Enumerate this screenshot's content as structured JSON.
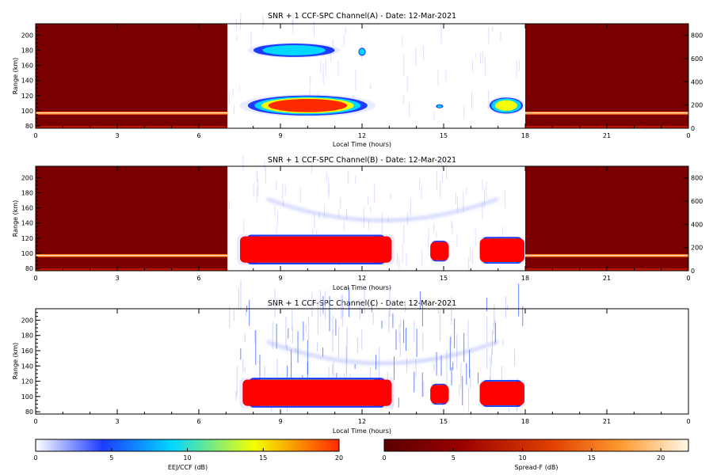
{
  "colors": {
    "eej_scale": [
      "#ffffff",
      "#1e3cff",
      "#00d7ff",
      "#f5ff00",
      "#ff2a00"
    ],
    "sf_scale": [
      "#5a0000",
      "#9a0000",
      "#e04000",
      "#ff9a30",
      "#fff8e8"
    ],
    "dark_bg": "#7a0000",
    "saturated": "#ff0000"
  },
  "chart_data": [
    {
      "type": "heatmap",
      "title": "SNR + 1 CCF-SPC Channel(A) - Date: 12-Mar-2021",
      "xlabel": "Local Time (hours)",
      "ylabel": "Range (km)",
      "xlim": [
        0,
        24
      ],
      "ylim": [
        77,
        215
      ],
      "y2lim": [
        0,
        900
      ],
      "x_ticks": [
        "0",
        "3",
        "6",
        "9",
        "12",
        "15",
        "18",
        "21",
        "0"
      ],
      "y_ticks": [
        "80",
        "100",
        "120",
        "140",
        "160",
        "180",
        "200"
      ],
      "y2_ticks": [
        "0",
        "200",
        "400",
        "600",
        "800"
      ],
      "spread_f_blocks": [
        [
          0,
          7.05
        ],
        [
          18,
          24
        ]
      ],
      "eej_blobs": [
        {
          "t": [
            7.5,
            12.5
          ],
          "r_center": 107,
          "r_halfwidth": 15,
          "peak_db": 20
        },
        {
          "t": [
            7.8,
            11.2
          ],
          "r_center": 180,
          "r_halfwidth": 10,
          "peak_db": 9
        },
        {
          "t": [
            11.85,
            12.15
          ],
          "r_center": 178,
          "r_halfwidth": 6,
          "peak_db": 8
        },
        {
          "t": [
            16.6,
            18
          ],
          "r_center": 107,
          "r_halfwidth": 12,
          "peak_db": 14
        },
        {
          "t": [
            14.7,
            15.0
          ],
          "r_center": 106,
          "r_halfwidth": 3,
          "peak_db": 6
        }
      ]
    },
    {
      "type": "heatmap",
      "title": "SNR + 1 CCF-SPC Channel(B) - Date: 12-Mar-2021",
      "xlabel": "Local Time (hours)",
      "ylabel": "Range (km)",
      "xlim": [
        0,
        24
      ],
      "ylim": [
        77,
        215
      ],
      "y2lim": [
        0,
        900
      ],
      "x_ticks": [
        "0",
        "3",
        "6",
        "9",
        "12",
        "15",
        "18",
        "21",
        "0"
      ],
      "y_ticks": [
        "80",
        "100",
        "120",
        "140",
        "160",
        "180",
        "200"
      ],
      "y2_ticks": [
        "0",
        "200",
        "400",
        "600",
        "800"
      ],
      "spread_f_blocks": [
        [
          0,
          7.05
        ],
        [
          18,
          24
        ]
      ],
      "eej_blobs": [
        {
          "t": [
            7.4,
            13.2
          ],
          "r_center": 105,
          "r_halfwidth": 20,
          "peak_db": 20
        },
        {
          "t": [
            14.5,
            15.2
          ],
          "r_center": 103,
          "r_halfwidth": 14,
          "peak_db": 20
        },
        {
          "t": [
            16.3,
            18
          ],
          "r_center": 104,
          "r_halfwidth": 18,
          "peak_db": 20
        }
      ],
      "arc": {
        "t": [
          8.5,
          17
        ],
        "r_low": 143,
        "r_high": 172,
        "peak_db": 3
      }
    },
    {
      "type": "heatmap",
      "title": "SNR + 1 CCF-SPC Channel(C) - Date: 12-Mar-2021",
      "xlabel": "Local Time (hours)",
      "ylabel": "Range (km)",
      "xlim": [
        0,
        24
      ],
      "ylim": [
        77,
        215
      ],
      "x_ticks": [
        "0",
        "3",
        "6",
        "9",
        "12",
        "15",
        "18",
        "21",
        "0"
      ],
      "y_ticks": [
        "80",
        "100",
        "120",
        "140",
        "160",
        "180",
        "200"
      ],
      "spread_f_blocks": [],
      "eej_blobs": [
        {
          "t": [
            7.5,
            13.2
          ],
          "r_center": 105,
          "r_halfwidth": 20,
          "peak_db": 20
        },
        {
          "t": [
            14.5,
            15.2
          ],
          "r_center": 103,
          "r_halfwidth": 14,
          "peak_db": 20
        },
        {
          "t": [
            16.3,
            18
          ],
          "r_center": 104,
          "r_halfwidth": 18,
          "peak_db": 20
        }
      ],
      "arc": {
        "t": [
          8.5,
          17
        ],
        "r_low": 143,
        "r_high": 172,
        "peak_db": 2
      }
    }
  ],
  "colorbars": [
    {
      "label": "EEJ/CCF (dB)",
      "ticks": [
        "0",
        "5",
        "10",
        "15",
        "20"
      ],
      "range": [
        0,
        20
      ]
    },
    {
      "label": "Spread-F (dB)",
      "ticks": [
        "0",
        "5",
        "10",
        "15",
        "20"
      ],
      "range": [
        0,
        22
      ]
    }
  ]
}
